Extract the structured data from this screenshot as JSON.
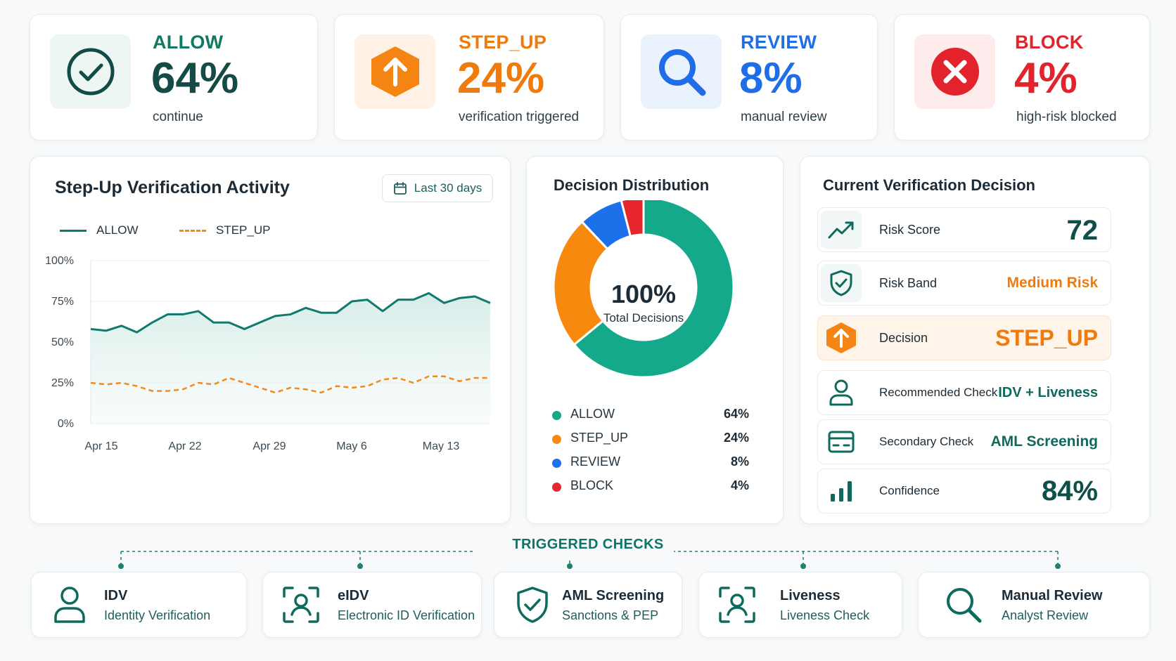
{
  "kpis": [
    {
      "label": "ALLOW",
      "value": "64%",
      "sub": "continue",
      "color": "#0f7a63",
      "value_color": "#144b46",
      "icon": "check-circle-icon",
      "box": "#eef6f4"
    },
    {
      "label": "STEP_UP",
      "value": "24%",
      "sub": "verification triggered",
      "color": "#f07a0c",
      "value_color": "#f07a0c",
      "icon": "arrow-up-hexagon-icon",
      "box": "#fff1e6"
    },
    {
      "label": "REVIEW",
      "value": "8%",
      "sub": "manual review",
      "color": "#1f6ee8",
      "value_color": "#1f6ee8",
      "icon": "magnifier-icon",
      "box": "#eaf2fd"
    },
    {
      "label": "BLOCK",
      "value": "4%",
      "sub": "high-risk blocked",
      "color": "#e3232c",
      "value_color": "#e3232c",
      "icon": "x-circle-icon",
      "box": "#fdeceb"
    }
  ],
  "activity": {
    "title": "Step-Up Verification Activity",
    "date_range": "Last 30 days"
  },
  "distribution": {
    "title": "Decision Distribution",
    "center_value": "100%",
    "center_label": "Total Decisions"
  },
  "current": {
    "title": "Current Verification Decision",
    "rows": [
      {
        "label": "Risk Score",
        "value": "72",
        "icon": "trend-up-icon",
        "color": "#0f4f4a"
      },
      {
        "label": "Risk Band",
        "value": "Medium Risk",
        "icon": "shield-check-icon",
        "color": "#f07a0c"
      },
      {
        "label": "Decision",
        "value": "STEP_UP",
        "icon": "arrow-up-hexagon-icon",
        "color": "#f07a0c"
      },
      {
        "label": "Recommended Check",
        "value": "IDV + Liveness",
        "icon": "person-icon",
        "color": "#0f6a5e"
      },
      {
        "label": "Secondary Check",
        "value": "AML Screening",
        "icon": "card-icon",
        "color": "#0f6a5e"
      },
      {
        "label": "Confidence",
        "value": "84%",
        "icon": "bar-chart-icon",
        "color": "#0f4f4a"
      }
    ]
  },
  "triggered": {
    "title": "TRIGGERED CHECKS",
    "checks": [
      {
        "title": "IDV",
        "sub": "Identity Verification",
        "icon": "person-icon"
      },
      {
        "title": "eIDV",
        "sub": "Electronic ID Verification",
        "icon": "face-scan-icon"
      },
      {
        "title": "AML Screening",
        "sub": "Sanctions & PEP",
        "icon": "shield-check-icon"
      },
      {
        "title": "Liveness",
        "sub": "Liveness Check",
        "icon": "face-scan-icon"
      },
      {
        "title": "Manual Review",
        "sub": "Analyst Review",
        "icon": "magnifier-icon"
      }
    ]
  },
  "chart_data": [
    {
      "type": "line",
      "title": "Step-Up Verification Activity",
      "x_ticks": [
        "Apr 15",
        "Apr 22",
        "Apr 29",
        "May 6",
        "May 13"
      ],
      "y_ticks": [
        "0%",
        "25%",
        "50%",
        "75%",
        "100%"
      ],
      "ylim": [
        0,
        100
      ],
      "grid": true,
      "legend": "top-left",
      "series": [
        {
          "name": "ALLOW",
          "color": "#0f7a6e",
          "style": "solid",
          "values": [
            58,
            57,
            60,
            56,
            62,
            67,
            67,
            69,
            62,
            62,
            58,
            62,
            66,
            67,
            71,
            68,
            68,
            75,
            76,
            69,
            76,
            76,
            80,
            74,
            77,
            78,
            74
          ]
        },
        {
          "name": "STEP_UP",
          "color": "#f28a1a",
          "style": "dashed",
          "values": [
            25,
            24,
            25,
            23,
            20,
            20,
            21,
            25,
            24,
            28,
            25,
            22,
            19,
            22,
            21,
            19,
            23,
            22,
            23,
            27,
            28,
            25,
            29,
            29,
            26,
            28,
            28
          ]
        }
      ]
    },
    {
      "type": "pie",
      "title": "Decision Distribution",
      "categories": [
        "ALLOW",
        "STEP_UP",
        "REVIEW",
        "BLOCK"
      ],
      "values": [
        64,
        24,
        8,
        4
      ],
      "labels": [
        "64%",
        "24%",
        "8%",
        "4%"
      ],
      "colors": [
        "#13a98a",
        "#f7890e",
        "#1c70ea",
        "#e8262d"
      ],
      "legend": "bottom"
    }
  ]
}
